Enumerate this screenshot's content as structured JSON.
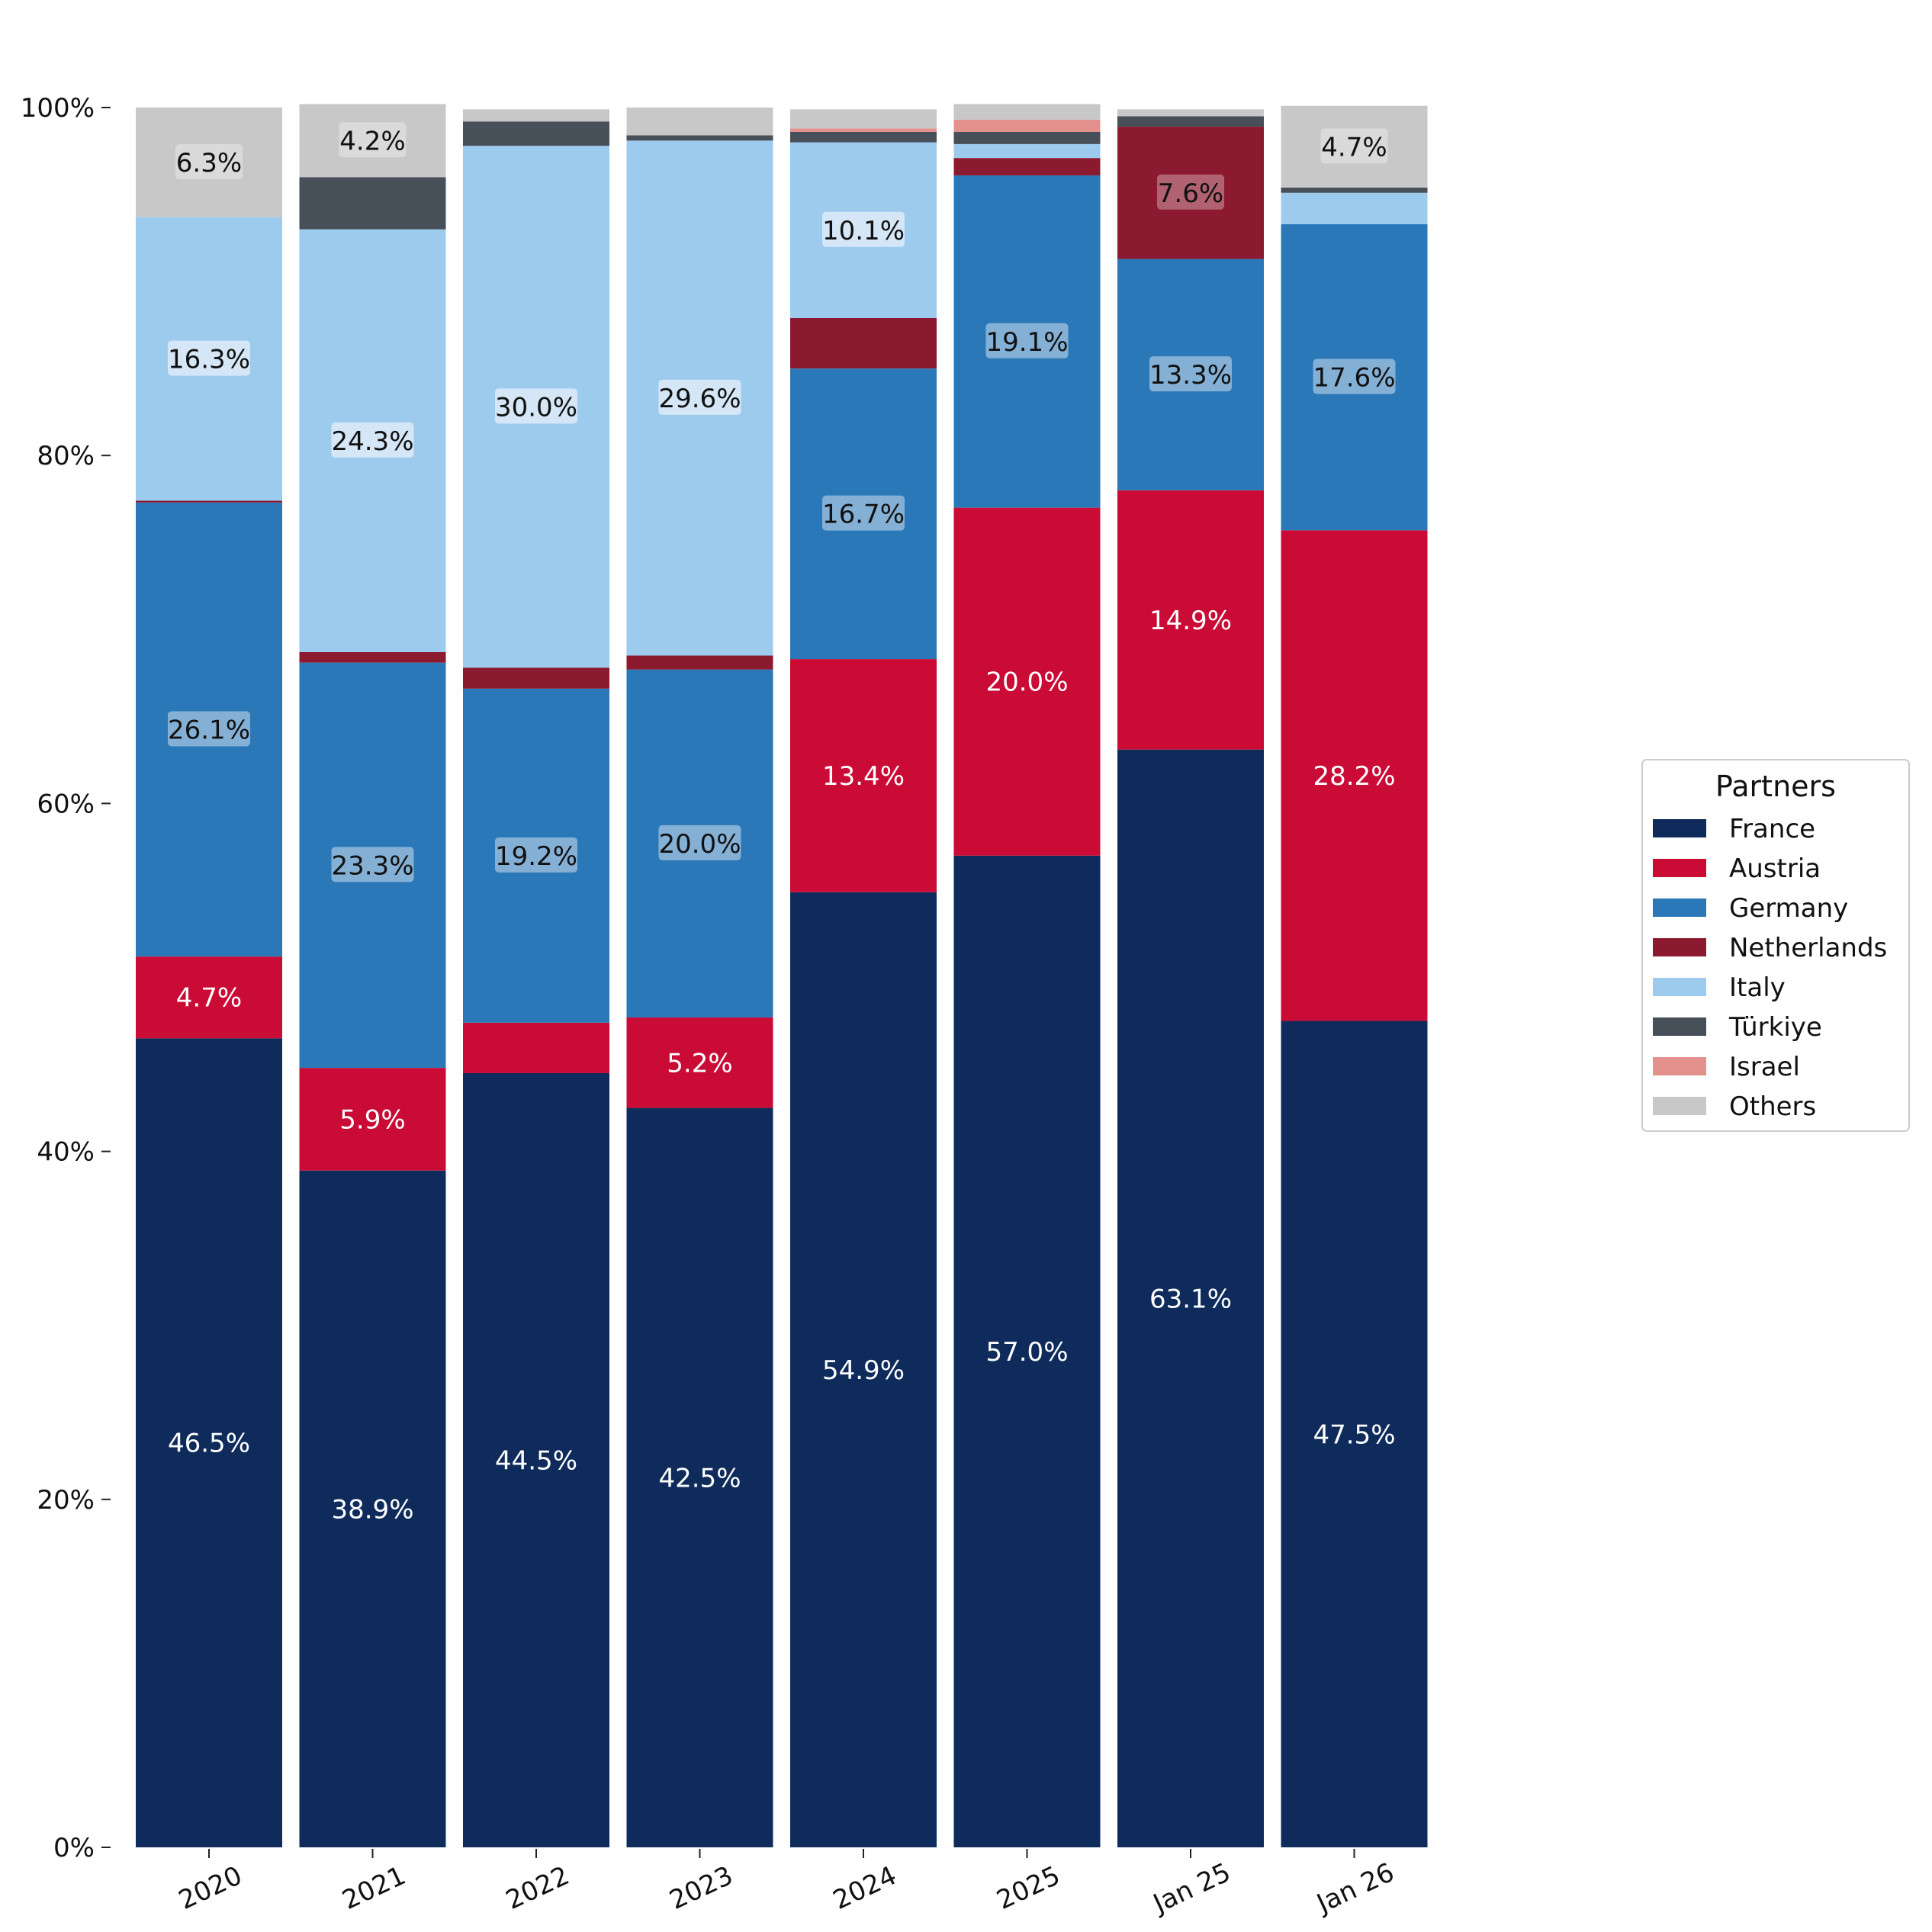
{
  "chart_data": {
    "type": "bar",
    "stacked": true,
    "normalized_percent": true,
    "categories": [
      "2020",
      "2021",
      "2022",
      "2023",
      "2024",
      "2025",
      "Jan 25",
      "Jan 26"
    ],
    "ylim": [
      0,
      100
    ],
    "y_ticks": [
      0,
      20,
      40,
      60,
      80,
      100
    ],
    "y_tick_labels": [
      "0%",
      "20%",
      "40%",
      "60%",
      "80%",
      "100%"
    ],
    "grid": false,
    "legend": {
      "title": "Partners",
      "position": "right"
    },
    "series": [
      {
        "name": "France",
        "color": "#0e2b5c",
        "values": [
          46.5,
          38.9,
          44.5,
          42.5,
          54.9,
          57.0,
          63.1,
          47.5
        ]
      },
      {
        "name": "Austria",
        "color": "#c90b35",
        "values": [
          4.7,
          5.9,
          2.9,
          5.2,
          13.4,
          20.0,
          14.9,
          28.2
        ]
      },
      {
        "name": "Germany",
        "color": "#2a78b8",
        "values": [
          26.1,
          23.3,
          19.2,
          20.0,
          16.7,
          19.1,
          13.3,
          17.6
        ]
      },
      {
        "name": "Netherlands",
        "color": "#8b1a30",
        "values": [
          0.1,
          0.6,
          1.2,
          0.8,
          2.9,
          1.0,
          7.6,
          0.0
        ]
      },
      {
        "name": "Italy",
        "color": "#9dcbee",
        "values": [
          16.3,
          24.3,
          30.0,
          29.6,
          10.1,
          0.8,
          0.0,
          1.8
        ]
      },
      {
        "name": "Türkiye",
        "color": "#474f59",
        "values": [
          0.0,
          3.0,
          1.4,
          0.3,
          0.6,
          0.7,
          0.6,
          0.3
        ]
      },
      {
        "name": "Israel",
        "color": "#e4908c",
        "values": [
          0.0,
          0.0,
          0.0,
          0.0,
          0.2,
          0.7,
          0.0,
          0.0
        ]
      },
      {
        "name": "Others",
        "color": "#c8c8c8",
        "values": [
          6.3,
          4.2,
          0.7,
          1.6,
          1.1,
          0.9,
          0.4,
          4.7
        ]
      }
    ],
    "data_labels": [
      {
        "series": "France",
        "labels": [
          "46.5%",
          "38.9%",
          "44.5%",
          "42.5%",
          "54.9%",
          "57.0%",
          "63.1%",
          "47.5%"
        ]
      },
      {
        "series": "Austria",
        "labels": [
          "4.7%",
          "5.9%",
          "",
          "5.2%",
          "13.4%",
          "20.0%",
          "14.9%",
          "28.2%"
        ]
      },
      {
        "series": "Germany",
        "labels": [
          "26.1%",
          "23.3%",
          "19.2%",
          "20.0%",
          "16.7%",
          "19.1%",
          "13.3%",
          "17.6%"
        ]
      },
      {
        "series": "Netherlands",
        "labels": [
          "",
          "",
          "",
          "",
          "",
          "",
          "7.6%",
          ""
        ]
      },
      {
        "series": "Italy",
        "labels": [
          "16.3%",
          "24.3%",
          "30.0%",
          "29.6%",
          "10.1%",
          "",
          "",
          ""
        ]
      },
      {
        "series": "Türkiye",
        "labels": [
          "",
          "",
          "",
          "",
          "",
          "",
          "",
          ""
        ]
      },
      {
        "series": "Israel",
        "labels": [
          "",
          "",
          "",
          "",
          "",
          "",
          "",
          ""
        ]
      },
      {
        "series": "Others",
        "labels": [
          "6.3%",
          "4.2%",
          "",
          "",
          "",
          "",
          "",
          "4.7%"
        ]
      }
    ]
  }
}
